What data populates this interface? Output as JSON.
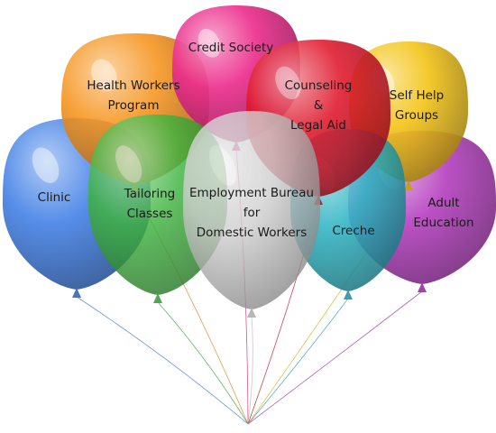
{
  "balloons": [
    {
      "id": "clinic",
      "lines": [
        "Clinic"
      ],
      "color": "#4a86e8"
    },
    {
      "id": "health",
      "lines": [
        "Health Workers",
        "Program"
      ],
      "color": "#f7941d"
    },
    {
      "id": "credit",
      "lines": [
        "Credit Society"
      ],
      "color": "#ec2e8c"
    },
    {
      "id": "adult",
      "lines": [
        "Adult",
        "Education"
      ],
      "color": "#b63fc0"
    },
    {
      "id": "selfhelp",
      "lines": [
        "Self Help",
        "Groups"
      ],
      "color": "#f5c518"
    },
    {
      "id": "creche",
      "lines": [
        "Creche"
      ],
      "color": "#2fb5c4"
    },
    {
      "id": "counseling",
      "lines": [
        "Counseling",
        "&",
        "Legal Aid"
      ],
      "color": "#e0162b"
    },
    {
      "id": "tailoring",
      "lines": [
        "Tailoring",
        "Classes"
      ],
      "color": "#3fb53f"
    },
    {
      "id": "employment",
      "lines": [
        "Employment Bureau",
        "for",
        "Domestic Workers"
      ],
      "color": "#cfcfcf"
    }
  ]
}
